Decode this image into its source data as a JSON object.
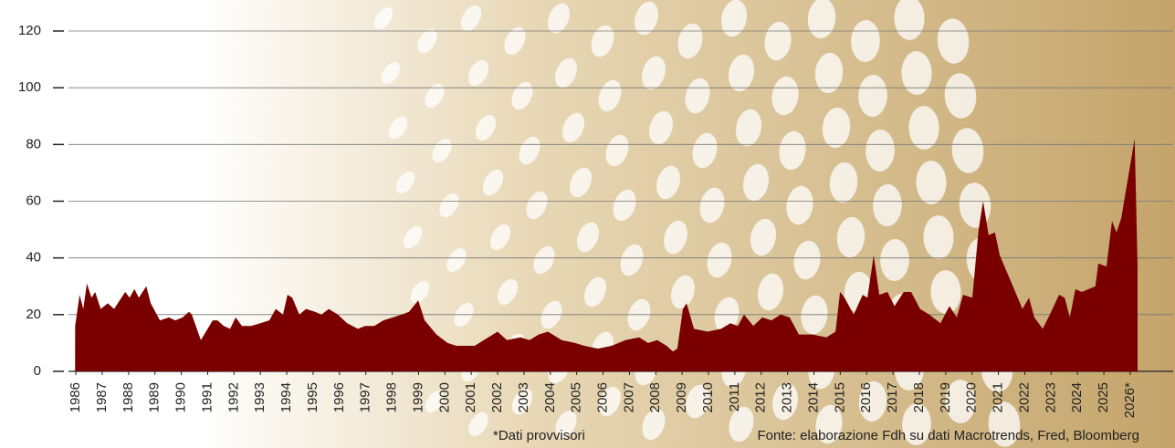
{
  "chart_data": {
    "type": "area",
    "x": [
      1985.97,
      1986.14,
      1986.28,
      1986.42,
      1986.59,
      1986.73,
      1986.94,
      1987.21,
      1987.45,
      1987.87,
      1988.04,
      1988.22,
      1988.39,
      1988.67,
      1988.84,
      1989.19,
      1989.53,
      1989.77,
      1990.05,
      1990.29,
      1990.4,
      1990.74,
      1991.19,
      1991.37,
      1991.61,
      1991.85,
      1992.06,
      1992.3,
      1992.65,
      1993.0,
      1993.34,
      1993.58,
      1993.86,
      1994.03,
      1994.21,
      1994.48,
      1994.73,
      1995.07,
      1995.32,
      1995.59,
      1995.94,
      1996.29,
      1996.7,
      1996.98,
      1997.32,
      1997.67,
      1998.02,
      1998.36,
      1998.64,
      1998.99,
      1999.23,
      1999.68,
      2000.1,
      2000.44,
      2000.79,
      2001.13,
      2001.48,
      2002.0,
      2002.35,
      2002.87,
      2003.21,
      2003.56,
      2003.91,
      2004.43,
      2004.94,
      2005.29,
      2005.81,
      2006.33,
      2006.85,
      2007.37,
      2007.71,
      2008.06,
      2008.41,
      2008.65,
      2008.82,
      2009.03,
      2009.17,
      2009.45,
      2009.97,
      2010.48,
      2010.83,
      2011.11,
      2011.35,
      2011.7,
      2012.04,
      2012.39,
      2012.74,
      2013.08,
      2013.43,
      2013.95,
      2014.47,
      2014.82,
      2014.99,
      2015.16,
      2015.51,
      2015.85,
      2016.03,
      2016.27,
      2016.48,
      2016.79,
      2017.06,
      2017.41,
      2017.69,
      2018.03,
      2018.38,
      2018.8,
      2019.14,
      2019.42,
      2019.66,
      2020.01,
      2020.25,
      2020.42,
      2020.63,
      2020.87,
      2021.05,
      2021.64,
      2021.91,
      2022.16,
      2022.36,
      2022.68,
      2022.95,
      2023.3,
      2023.51,
      2023.71,
      2023.92,
      2024.16,
      2024.68,
      2024.79,
      2025.1,
      2025.31,
      2025.48,
      2025.66,
      2026.17,
      2026.28
    ],
    "values": [
      16,
      27,
      22,
      31,
      26,
      28,
      22,
      24,
      22,
      28,
      26,
      29,
      26,
      30,
      24,
      18,
      19,
      18,
      19,
      21,
      20,
      11,
      18,
      18,
      16,
      15,
      19,
      16,
      16,
      17,
      18,
      22,
      20,
      27,
      26,
      20,
      22,
      21,
      20,
      22,
      20,
      17,
      15,
      16,
      16,
      18,
      19,
      20,
      21,
      25,
      18,
      13,
      10,
      9,
      9,
      9,
      11,
      14,
      11,
      12,
      11,
      13,
      14,
      11,
      10,
      9,
      8,
      9,
      11,
      12,
      10,
      11,
      9,
      7,
      8,
      22,
      24,
      15,
      14,
      15,
      17,
      16,
      20,
      16,
      19,
      18,
      20,
      19,
      13,
      13,
      12,
      14,
      28,
      26,
      20,
      27,
      26,
      41,
      27,
      28,
      23,
      28,
      28,
      22,
      20,
      17,
      23,
      19,
      27,
      26,
      50,
      60,
      48,
      49,
      41,
      28,
      22,
      26,
      19,
      15,
      20,
      27,
      26,
      19,
      29,
      28,
      30,
      38,
      37,
      53,
      49,
      54,
      82,
      37
    ],
    "color": "#7a0000",
    "xlim": [
      1985.13,
      2027.63
    ],
    "ylim": [
      0,
      120
    ],
    "yticks": [
      0,
      20,
      40,
      60,
      80,
      100,
      120
    ],
    "xticks": [
      1986,
      1987,
      1988,
      1989,
      1990,
      1991,
      1992,
      1993,
      1994,
      1995,
      1996,
      1997,
      1998,
      1999,
      2000,
      2001,
      2002,
      2003,
      2004,
      2005,
      2006,
      2007,
      2008,
      2009,
      2010,
      2011,
      2012,
      2013,
      2014,
      2015,
      2016,
      2017,
      2018,
      2019,
      2020,
      2021,
      2022,
      2023,
      2024,
      2025,
      {
        "value": 2026,
        "label": "2026*"
      }
    ],
    "grid": true,
    "annotations": [
      "*Dati provvisori",
      "Fonte: elaborazione Fdh su dati Macrotrends, Fred, Bloomberg"
    ]
  }
}
